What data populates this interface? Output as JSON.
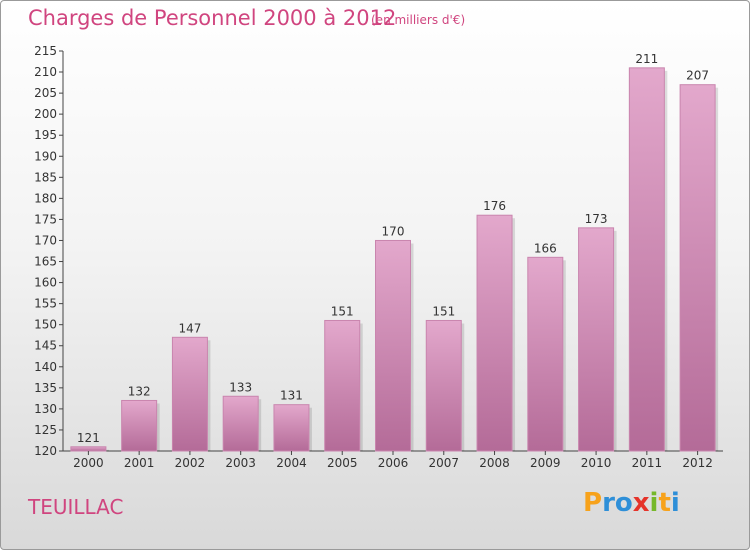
{
  "chart_data": {
    "type": "bar",
    "title": "Charges de Personnel 2000 à 2012",
    "subtitle": "(en milliers d'€)",
    "categories": [
      "2000",
      "2001",
      "2002",
      "2003",
      "2004",
      "2005",
      "2006",
      "2007",
      "2008",
      "2009",
      "2010",
      "2011",
      "2012"
    ],
    "values": [
      121,
      132,
      147,
      133,
      131,
      151,
      170,
      151,
      176,
      166,
      173,
      211,
      207
    ],
    "ylim": [
      120,
      215
    ],
    "yticks": [
      120,
      125,
      130,
      135,
      140,
      145,
      150,
      155,
      160,
      165,
      170,
      175,
      180,
      185,
      190,
      195,
      200,
      205,
      210,
      215
    ],
    "grid": false,
    "bar_color": "#d998bd"
  },
  "footer": {
    "commune": "TEUILLAC",
    "brand": "Proxiti",
    "brand_letters": [
      {
        "char": "P",
        "color": "#f7a21b"
      },
      {
        "char": "r",
        "color": "#2e8fd8"
      },
      {
        "char": "o",
        "color": "#2e8fd8"
      },
      {
        "char": "x",
        "color": "#e5332a"
      },
      {
        "char": "i",
        "color": "#76b82a"
      },
      {
        "char": "t",
        "color": "#f7a21b"
      },
      {
        "char": "i",
        "color": "#2e8fd8"
      }
    ]
  }
}
